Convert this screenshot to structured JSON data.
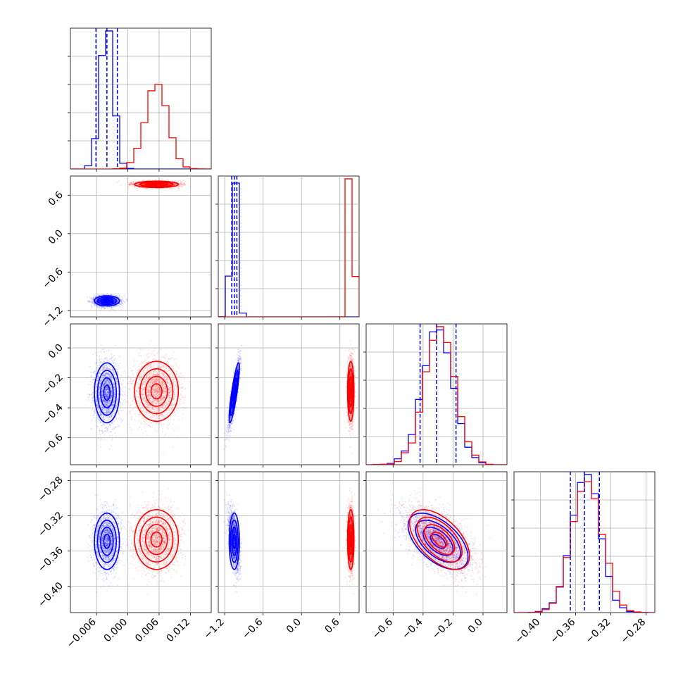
{
  "chart_data": {
    "type": "corner",
    "grid": true,
    "series": [
      {
        "color": "#0000ff",
        "mean": [
          -0.004,
          -1.05,
          -0.3,
          -0.349
        ],
        "std": [
          0.0012,
          0.04,
          0.1,
          0.016
        ],
        "quantiles": [
          [
            -0.0061,
            -0.004,
            -0.002
          ],
          [
            -1.09,
            -1.05,
            -1.01
          ],
          [
            -0.42,
            -0.31,
            -0.18
          ],
          [
            -0.366,
            -0.35,
            -0.333
          ]
        ]
      },
      {
        "color": "#ff0000",
        "mean": [
          0.0055,
          0.77,
          -0.29,
          -0.347
        ],
        "std": [
          0.0021,
          0.025,
          0.1,
          0.017
        ]
      }
    ],
    "correlations": {
      "blue": {
        "2-3": -0.55,
        "1-2": 0.85
      },
      "red": {
        "2-3": -0.55
      }
    },
    "axes": [
      {
        "range": [
          -0.011,
          0.016
        ],
        "ticks": [
          -0.006,
          0.0,
          0.006,
          0.012
        ],
        "tick_labels": [
          "−0.006",
          "0.000",
          "0.006",
          "0.012"
        ]
      },
      {
        "range": [
          -1.3,
          0.9
        ],
        "ticks": [
          -1.2,
          -0.6,
          0.0,
          0.6
        ],
        "tick_labels": [
          "−1.2",
          "−0.6",
          "0.0",
          "0.6"
        ]
      },
      {
        "range": [
          -0.78,
          0.16
        ],
        "ticks": [
          -0.6,
          -0.4,
          -0.2,
          0.0
        ],
        "tick_labels": [
          "−0.6",
          "−0.4",
          "−0.2",
          "0.0"
        ]
      },
      {
        "range": [
          -0.43,
          -0.27
        ],
        "ticks": [
          -0.4,
          -0.36,
          -0.32,
          -0.28
        ],
        "tick_labels": [
          "−0.40",
          "−0.36",
          "−0.32",
          "−0.28"
        ]
      }
    ]
  }
}
